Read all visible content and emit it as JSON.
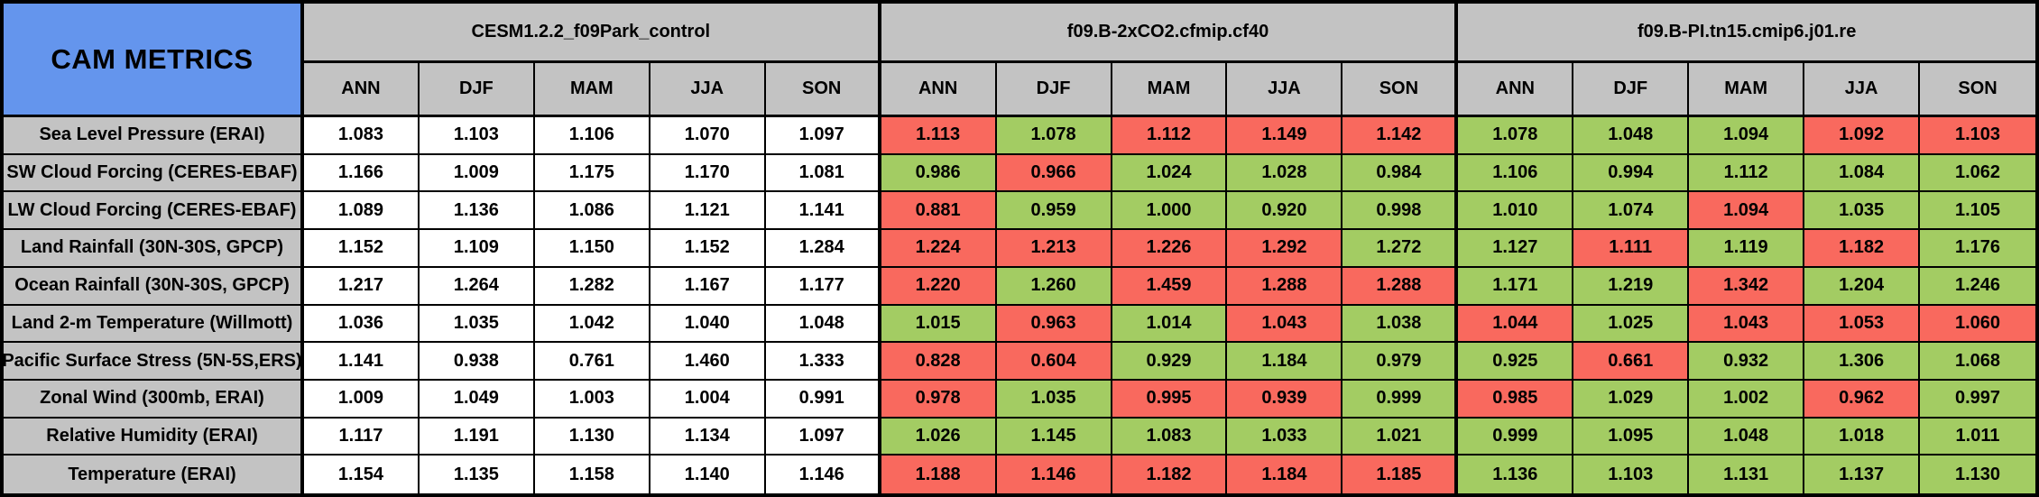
{
  "title": "CAM METRICS",
  "colors": {
    "title_blue": "#6495ED",
    "header_gray": "#C3C3C3",
    "worse_red": "#F9695E",
    "better_green": "#A3CC63",
    "neutral_white": "#FFFFFF",
    "border_black": "#000000"
  },
  "chart_data": {
    "type": "table",
    "title": "CAM METRICS",
    "groups": [
      "CESM1.2.2_f09Park_control",
      "f09.B-2xCO2.cfmip.cf40",
      "f09.B-PI.tn15.cmip6.j01.re"
    ],
    "seasons": [
      "ANN",
      "DJF",
      "MAM",
      "JJA",
      "SON"
    ],
    "cell_color_codes": {
      "w": "neutral_white",
      "g": "better_green",
      "r": "worse_red"
    },
    "rows": [
      {
        "label": "Sea Level Pressure (ERAI)",
        "values": [
          [
            "1.083",
            "1.103",
            "1.106",
            "1.070",
            "1.097"
          ],
          [
            "1.113",
            "1.078",
            "1.112",
            "1.149",
            "1.142"
          ],
          [
            "1.078",
            "1.048",
            "1.094",
            "1.092",
            "1.103"
          ]
        ],
        "cell_colors": [
          [
            "w",
            "w",
            "w",
            "w",
            "w"
          ],
          [
            "r",
            "g",
            "r",
            "r",
            "r"
          ],
          [
            "g",
            "g",
            "g",
            "r",
            "r"
          ]
        ]
      },
      {
        "label": "SW Cloud Forcing (CERES-EBAF)",
        "values": [
          [
            "1.166",
            "1.009",
            "1.175",
            "1.170",
            "1.081"
          ],
          [
            "0.986",
            "0.966",
            "1.024",
            "1.028",
            "0.984"
          ],
          [
            "1.106",
            "0.994",
            "1.112",
            "1.084",
            "1.062"
          ]
        ],
        "cell_colors": [
          [
            "w",
            "w",
            "w",
            "w",
            "w"
          ],
          [
            "g",
            "r",
            "g",
            "g",
            "g"
          ],
          [
            "g",
            "g",
            "g",
            "g",
            "g"
          ]
        ]
      },
      {
        "label": "LW Cloud Forcing (CERES-EBAF)",
        "values": [
          [
            "1.089",
            "1.136",
            "1.086",
            "1.121",
            "1.141"
          ],
          [
            "0.881",
            "0.959",
            "1.000",
            "0.920",
            "0.998"
          ],
          [
            "1.010",
            "1.074",
            "1.094",
            "1.035",
            "1.105"
          ]
        ],
        "cell_colors": [
          [
            "w",
            "w",
            "w",
            "w",
            "w"
          ],
          [
            "r",
            "g",
            "g",
            "g",
            "g"
          ],
          [
            "g",
            "g",
            "r",
            "g",
            "g"
          ]
        ]
      },
      {
        "label": "Land Rainfall (30N-30S, GPCP)",
        "values": [
          [
            "1.152",
            "1.109",
            "1.150",
            "1.152",
            "1.284"
          ],
          [
            "1.224",
            "1.213",
            "1.226",
            "1.292",
            "1.272"
          ],
          [
            "1.127",
            "1.111",
            "1.119",
            "1.182",
            "1.176"
          ]
        ],
        "cell_colors": [
          [
            "w",
            "w",
            "w",
            "w",
            "w"
          ],
          [
            "r",
            "r",
            "r",
            "r",
            "g"
          ],
          [
            "g",
            "r",
            "g",
            "r",
            "g"
          ]
        ]
      },
      {
        "label": "Ocean Rainfall (30N-30S, GPCP)",
        "values": [
          [
            "1.217",
            "1.264",
            "1.282",
            "1.167",
            "1.177"
          ],
          [
            "1.220",
            "1.260",
            "1.459",
            "1.288",
            "1.288"
          ],
          [
            "1.171",
            "1.219",
            "1.342",
            "1.204",
            "1.246"
          ]
        ],
        "cell_colors": [
          [
            "w",
            "w",
            "w",
            "w",
            "w"
          ],
          [
            "r",
            "g",
            "r",
            "r",
            "r"
          ],
          [
            "g",
            "g",
            "r",
            "g",
            "g"
          ]
        ]
      },
      {
        "label": "Land 2-m Temperature (Willmott)",
        "values": [
          [
            "1.036",
            "1.035",
            "1.042",
            "1.040",
            "1.048"
          ],
          [
            "1.015",
            "0.963",
            "1.014",
            "1.043",
            "1.038"
          ],
          [
            "1.044",
            "1.025",
            "1.043",
            "1.053",
            "1.060"
          ]
        ],
        "cell_colors": [
          [
            "w",
            "w",
            "w",
            "w",
            "w"
          ],
          [
            "g",
            "r",
            "g",
            "r",
            "g"
          ],
          [
            "r",
            "g",
            "r",
            "r",
            "r"
          ]
        ]
      },
      {
        "label": "Pacific Surface Stress (5N-5S,ERS)",
        "values": [
          [
            "1.141",
            "0.938",
            "0.761",
            "1.460",
            "1.333"
          ],
          [
            "0.828",
            "0.604",
            "0.929",
            "1.184",
            "0.979"
          ],
          [
            "0.925",
            "0.661",
            "0.932",
            "1.306",
            "1.068"
          ]
        ],
        "cell_colors": [
          [
            "w",
            "w",
            "w",
            "w",
            "w"
          ],
          [
            "r",
            "r",
            "g",
            "g",
            "g"
          ],
          [
            "g",
            "r",
            "g",
            "g",
            "g"
          ]
        ]
      },
      {
        "label": "Zonal Wind (300mb, ERAI)",
        "values": [
          [
            "1.009",
            "1.049",
            "1.003",
            "1.004",
            "0.991"
          ],
          [
            "0.978",
            "1.035",
            "0.995",
            "0.939",
            "0.999"
          ],
          [
            "0.985",
            "1.029",
            "1.002",
            "0.962",
            "0.997"
          ]
        ],
        "cell_colors": [
          [
            "w",
            "w",
            "w",
            "w",
            "w"
          ],
          [
            "r",
            "g",
            "r",
            "r",
            "g"
          ],
          [
            "r",
            "g",
            "g",
            "r",
            "g"
          ]
        ]
      },
      {
        "label": "Relative Humidity (ERAI)",
        "values": [
          [
            "1.117",
            "1.191",
            "1.130",
            "1.134",
            "1.097"
          ],
          [
            "1.026",
            "1.145",
            "1.083",
            "1.033",
            "1.021"
          ],
          [
            "0.999",
            "1.095",
            "1.048",
            "1.018",
            "1.011"
          ]
        ],
        "cell_colors": [
          [
            "w",
            "w",
            "w",
            "w",
            "w"
          ],
          [
            "g",
            "g",
            "g",
            "g",
            "g"
          ],
          [
            "g",
            "g",
            "g",
            "g",
            "g"
          ]
        ]
      },
      {
        "label": "Temperature (ERAI)",
        "values": [
          [
            "1.154",
            "1.135",
            "1.158",
            "1.140",
            "1.146"
          ],
          [
            "1.188",
            "1.146",
            "1.182",
            "1.184",
            "1.185"
          ],
          [
            "1.136",
            "1.103",
            "1.131",
            "1.137",
            "1.130"
          ]
        ],
        "cell_colors": [
          [
            "w",
            "w",
            "w",
            "w",
            "w"
          ],
          [
            "r",
            "r",
            "r",
            "r",
            "r"
          ],
          [
            "g",
            "g",
            "g",
            "g",
            "g"
          ]
        ]
      }
    ]
  }
}
